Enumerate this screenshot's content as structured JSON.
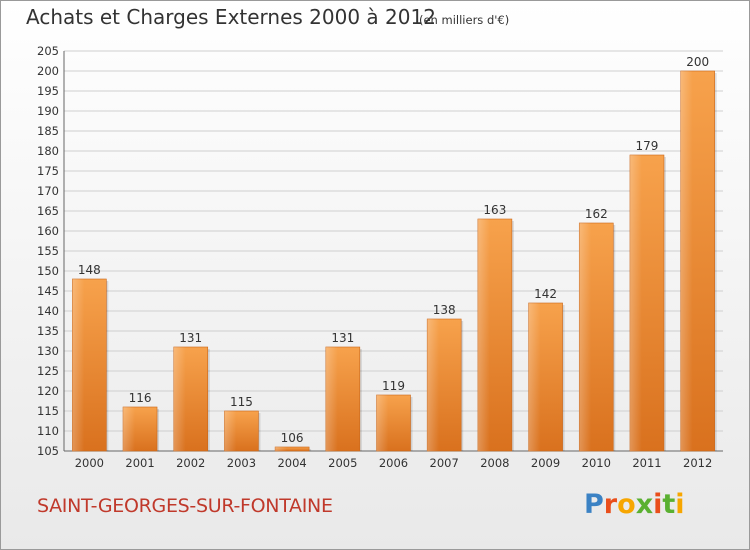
{
  "header": {
    "title": "Achats et Charges Externes 2000 à 2012",
    "subtitle": "(en milliers d'€)"
  },
  "footer": {
    "place": "SAINT-GEORGES-SUR-FONTAINE",
    "logo_letters": [
      "P",
      "r",
      "o",
      "x",
      "i",
      "t",
      "i"
    ],
    "logo_colors": [
      "#3b82c4",
      "#e94e1b",
      "#f7a600",
      "#5ab031",
      "#e94e1b",
      "#5ab031",
      "#f7a600"
    ]
  },
  "chart_data": {
    "type": "bar",
    "categories": [
      "2000",
      "2001",
      "2002",
      "2003",
      "2004",
      "2005",
      "2006",
      "2007",
      "2008",
      "2009",
      "2010",
      "2011",
      "2012"
    ],
    "values": [
      148,
      116,
      131,
      115,
      106,
      131,
      119,
      138,
      163,
      142,
      162,
      179,
      200
    ],
    "ylim": [
      105,
      205
    ],
    "yticks": [
      105,
      110,
      115,
      120,
      125,
      130,
      135,
      140,
      145,
      150,
      155,
      160,
      165,
      170,
      175,
      180,
      185,
      190,
      195,
      200,
      205
    ],
    "grid": true,
    "bar_color_top": "#f7a24c",
    "bar_color_bottom": "#d9711e"
  }
}
